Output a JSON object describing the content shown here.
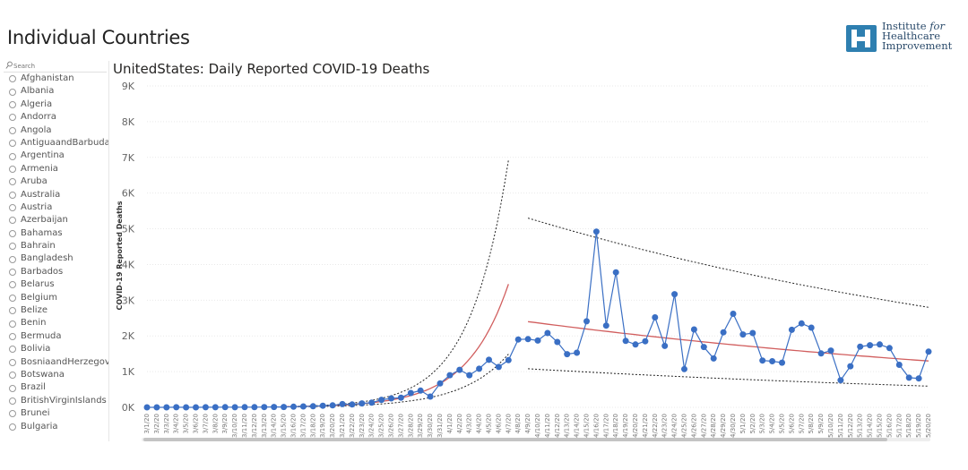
{
  "page": {
    "title": "Individual Countries"
  },
  "logo": {
    "line1": "Institute ",
    "line1_italic": "for",
    "line2": "Healthcare",
    "line3": "Improvement",
    "color": "#2e7fb0"
  },
  "sidebar": {
    "search_placeholder": "Search",
    "countries": [
      "Afghanistan",
      "Albania",
      "Algeria",
      "Andorra",
      "Angola",
      "AntiguaandBarbuda",
      "Argentina",
      "Armenia",
      "Aruba",
      "Australia",
      "Austria",
      "Azerbaijan",
      "Bahamas",
      "Bahrain",
      "Bangladesh",
      "Barbados",
      "Belarus",
      "Belgium",
      "Belize",
      "Benin",
      "Bermuda",
      "Bolivia",
      "BosniaandHerzegov...",
      "Botswana",
      "Brazil",
      "BritishVirginIslands",
      "Brunei",
      "Bulgaria"
    ]
  },
  "chart_data": {
    "type": "line",
    "title": "UnitedStates: Daily Reported COVID-19 Deaths",
    "ylabel": "COVID-19 Reported Deaths",
    "xlabel": "",
    "ylim": [
      0,
      9000
    ],
    "yticks": [
      "0K",
      "1K",
      "2K",
      "3K",
      "4K",
      "5K",
      "6K",
      "7K",
      "8K",
      "9K"
    ],
    "x": [
      "3/1/20",
      "3/2/20",
      "3/3/20",
      "3/4/20",
      "3/5/20",
      "3/6/20",
      "3/7/20",
      "3/8/20",
      "3/9/20",
      "3/10/20",
      "3/11/20",
      "3/12/20",
      "3/13/20",
      "3/14/20",
      "3/15/20",
      "3/16/20",
      "3/17/20",
      "3/18/20",
      "3/19/20",
      "3/20/20",
      "3/21/20",
      "3/22/20",
      "3/23/20",
      "3/24/20",
      "3/25/20",
      "3/26/20",
      "3/27/20",
      "3/28/20",
      "3/29/20",
      "3/30/20",
      "3/31/20",
      "4/1/20",
      "4/2/20",
      "4/3/20",
      "4/4/20",
      "4/5/20",
      "4/6/20",
      "4/7/20",
      "4/8/20",
      "4/9/20",
      "4/10/20",
      "4/11/20",
      "4/12/20",
      "4/13/20",
      "4/14/20",
      "4/15/20",
      "4/16/20",
      "4/17/20",
      "4/18/20",
      "4/19/20",
      "4/20/20",
      "4/21/20",
      "4/22/20",
      "4/23/20",
      "4/24/20",
      "4/25/20",
      "4/26/20",
      "4/27/20",
      "4/28/20",
      "4/29/20",
      "4/30/20",
      "5/1/20",
      "5/2/20",
      "5/3/20",
      "5/4/20",
      "5/5/20",
      "5/6/20",
      "5/7/20",
      "5/8/20",
      "5/9/20",
      "5/10/20",
      "5/11/20",
      "5/12/20",
      "5/13/20",
      "5/14/20",
      "5/15/20",
      "5/16/20",
      "5/17/20",
      "5/18/20",
      "5/19/20",
      "5/20/20"
    ],
    "series": [
      {
        "values": [
          0,
          1,
          0,
          2,
          1,
          1,
          3,
          3,
          4,
          3,
          5,
          6,
          8,
          10,
          10,
          18,
          25,
          30,
          45,
          55,
          90,
          80,
          110,
          130,
          210,
          250,
          270,
          400,
          470,
          300,
          670,
          900,
          1050,
          900,
          1080,
          1330,
          1130,
          1320,
          1900,
          1910,
          1870,
          2080,
          1830,
          1490,
          1530,
          2410,
          4920,
          2290,
          3780,
          1860,
          1760,
          1850,
          2520,
          1720,
          3170,
          1070,
          2180,
          1690,
          1370,
          2100,
          2620,
          2040,
          2080,
          1310,
          1290,
          1250,
          2170,
          2350,
          2230,
          1510,
          1590,
          760,
          1150,
          1700,
          1740,
          1760,
          1660,
          1190,
          830,
          810,
          1560
        ]
      }
    ],
    "colors": {
      "series": "#3a6fc4",
      "fit": "#d15e5e",
      "envelope": "#222222"
    },
    "legend": "none",
    "grid": true
  }
}
